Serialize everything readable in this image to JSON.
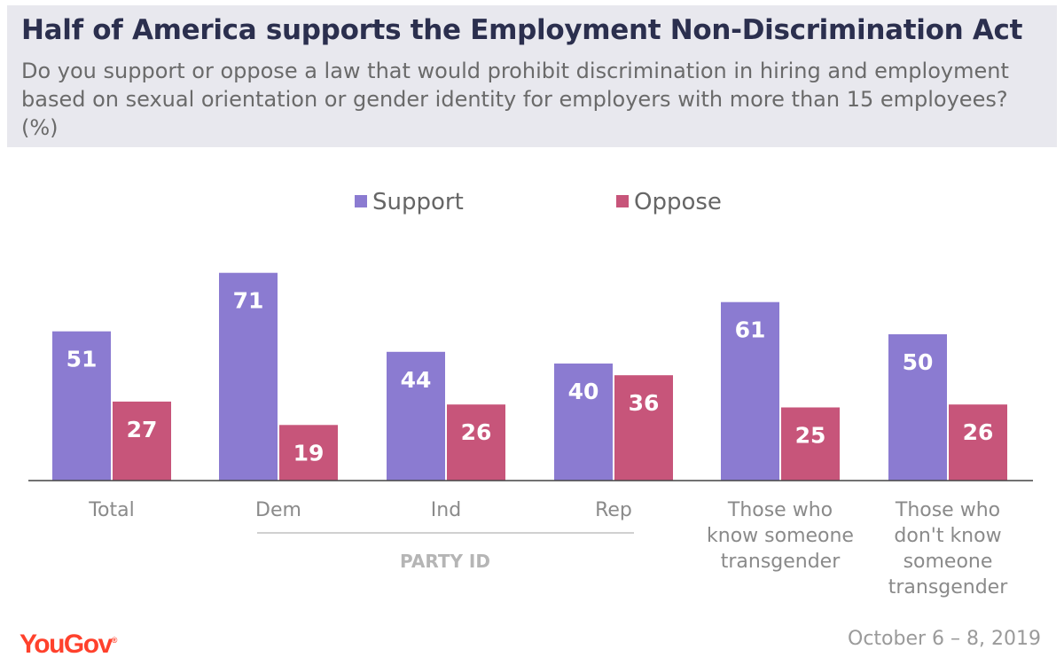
{
  "title": "Half of America supports the Employment Non-Discrimination Act",
  "subtitle": "Do you support or oppose a law that would prohibit discrimination in hiring and employment based on sexual orientation or gender identity for employers with more than 15 employees? (%)",
  "brand": "YouGov",
  "date": "October 6 – 8, 2019",
  "group_label": "PARTY ID",
  "colors": {
    "support": "#8b7bd1",
    "oppose": "#c7557a",
    "label_text": "#8a8a8a",
    "header_bg": "#e8e8ee"
  },
  "chart_data": {
    "type": "bar",
    "categories": [
      "Total",
      "Dem",
      "Ind",
      "Rep",
      "Those who know someone transgender",
      "Those who don't know someone transgender"
    ],
    "series": [
      {
        "name": "Support",
        "values": [
          51,
          71,
          44,
          40,
          61,
          50
        ]
      },
      {
        "name": "Oppose",
        "values": [
          27,
          19,
          26,
          36,
          25,
          26
        ]
      }
    ],
    "legend_position": "top-center",
    "grid": false,
    "ylim": [
      0,
      75
    ]
  }
}
